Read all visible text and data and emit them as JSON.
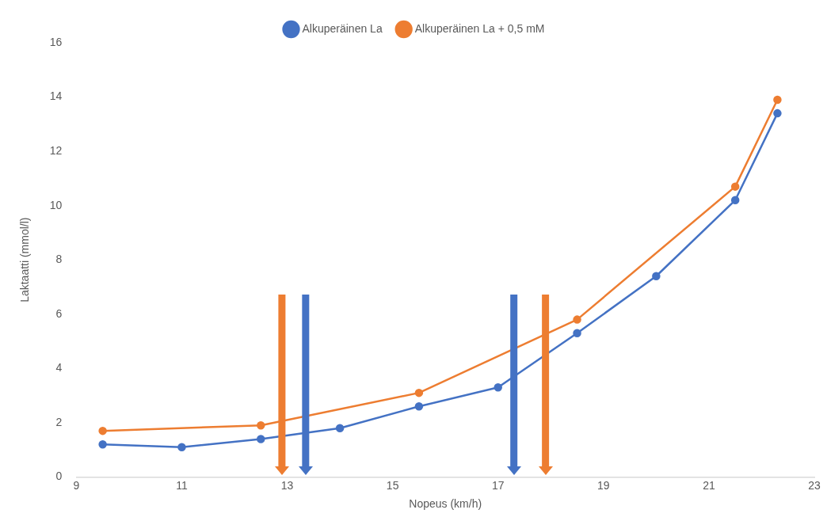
{
  "chart_data": {
    "type": "line",
    "xlabel": "Nopeus (km/h)",
    "ylabel": "Laktaatti (mmol/l)",
    "xlim": [
      9,
      23
    ],
    "xticks": [
      9,
      11,
      13,
      15,
      17,
      19,
      21,
      23
    ],
    "ylim": [
      0,
      16
    ],
    "yticks": [
      0,
      2,
      4,
      6,
      8,
      10,
      12,
      14,
      16
    ],
    "grid": false,
    "legend": "top",
    "marker": "circle",
    "line_style": "solid",
    "series": [
      {
        "name": "Alkuperäinen La",
        "color": "#4472c4",
        "x": [
          9.5,
          11,
          12.5,
          14,
          15.5,
          17,
          18.5,
          20,
          21.5,
          22.3
        ],
        "values": [
          1.2,
          1.1,
          1.4,
          1.8,
          2.6,
          3.3,
          5.3,
          7.4,
          10.2,
          13.4
        ]
      },
      {
        "name": "Alkuperäinen La + 0,5 mM",
        "color": "#ed7d31",
        "x": [
          9.5,
          12.5,
          15.5,
          18.5,
          21.5,
          22.3
        ],
        "values": [
          1.7,
          1.9,
          3.1,
          5.8,
          10.7,
          13.9
        ]
      }
    ],
    "ref_lines": [
      {
        "axis": "x",
        "value": 12.9,
        "color": "#ed7d31"
      },
      {
        "axis": "x",
        "value": 13.35,
        "color": "#4472c4"
      },
      {
        "axis": "x",
        "value": 17.3,
        "color": "#4472c4"
      },
      {
        "axis": "x",
        "value": 17.9,
        "color": "#ed7d31"
      }
    ]
  }
}
